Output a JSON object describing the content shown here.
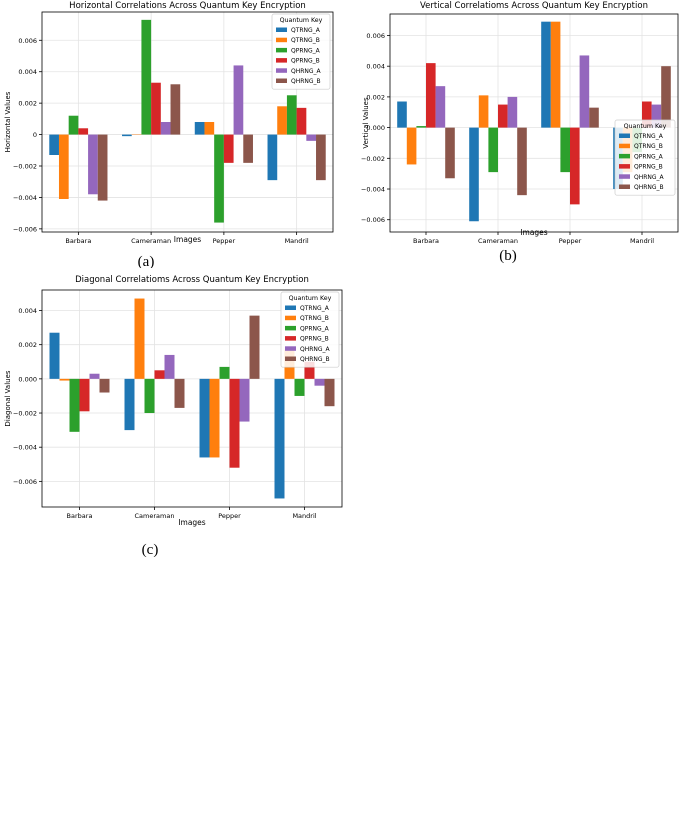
{
  "series_names": [
    "QTRNG_A",
    "QTRNG_B",
    "QPRNG_A",
    "QPRNG_B",
    "QHRNG_A",
    "QHRNG_B"
  ],
  "series_colors": [
    "#1f77b4",
    "#ff7f0e",
    "#2ca02c",
    "#d62728",
    "#9467bd",
    "#8c564b"
  ],
  "chart_data": [
    {
      "type": "bar",
      "title": "Horizontal Correlations Across Quantum Key Encryption",
      "xlabel": "Images",
      "ylabel": "Horizontal Values",
      "caption": "(a)",
      "legend_title": "Quantum Key",
      "legend_position": "top-right",
      "categories": [
        "Barbara",
        "Cameraman",
        "Pepper",
        "Mandril"
      ],
      "ylim": [
        -0.0062,
        0.0078
      ],
      "yticks": [
        -0.006,
        -0.004,
        -0.002,
        0,
        0.002,
        0.004,
        0.006
      ],
      "ytick_labels": [
        "−0.006",
        "−0.004",
        "−0.002",
        "0",
        "0.002",
        "0.004",
        "0.006"
      ],
      "series": [
        {
          "name": "QTRNG_A",
          "values": [
            -0.0013,
            -0.0001,
            0.0008,
            -0.0029
          ]
        },
        {
          "name": "QTRNG_B",
          "values": [
            -0.0041,
            0.0,
            0.0008,
            0.0018
          ]
        },
        {
          "name": "QPRNG_A",
          "values": [
            0.0012,
            0.0073,
            -0.0056,
            0.0025
          ]
        },
        {
          "name": "QPRNG_B",
          "values": [
            0.0004,
            0.0033,
            -0.0018,
            0.0017
          ]
        },
        {
          "name": "QHRNG_A",
          "values": [
            -0.0038,
            0.0008,
            0.0044,
            -0.0004
          ]
        },
        {
          "name": "QHRNG_B",
          "values": [
            -0.0042,
            0.0032,
            -0.0018,
            -0.0029
          ]
        }
      ]
    },
    {
      "type": "bar",
      "title": "Vertical Correlatioms Across Quantum Key Encryption",
      "xlabel": "Images",
      "ylabel": "Vertical Values",
      "caption": "(b)",
      "legend_title": "Quantum Key",
      "legend_position": "bottom-right",
      "categories": [
        "Barbara",
        "Cameraman",
        "Pepper",
        "Mandril"
      ],
      "ylim": [
        -0.0068,
        0.0074
      ],
      "yticks": [
        -0.006,
        -0.004,
        -0.002,
        0,
        0.002,
        0.004,
        0.006
      ],
      "ytick_labels": [
        "−0.006",
        "−0.004",
        "−0.002",
        "0.000",
        "0.002",
        "0.004",
        "0.006"
      ],
      "series": [
        {
          "name": "QTRNG_A",
          "values": [
            0.0017,
            -0.0061,
            0.0069,
            -0.004
          ]
        },
        {
          "name": "QTRNG_B",
          "values": [
            -0.0024,
            0.0021,
            0.0069,
            -0.0029
          ]
        },
        {
          "name": "QPRNG_A",
          "values": [
            0.0001,
            -0.0029,
            -0.0029,
            -0.0016
          ]
        },
        {
          "name": "QPRNG_B",
          "values": [
            0.0042,
            0.0015,
            -0.005,
            0.0017
          ]
        },
        {
          "name": "QHRNG_A",
          "values": [
            0.0027,
            0.002,
            0.0047,
            0.0015
          ]
        },
        {
          "name": "QHRNG_B",
          "values": [
            -0.0033,
            -0.0044,
            0.0013,
            0.004
          ]
        }
      ]
    },
    {
      "type": "bar",
      "title": "Diagonal Correlatioms Across Quantum Key Encryption",
      "xlabel": "Images",
      "ylabel": "Diagonal Values",
      "caption": "(c)",
      "legend_title": "Quantum Key",
      "legend_position": "top-right",
      "categories": [
        "Barbara",
        "Cameraman",
        "Pepper",
        "Mandril"
      ],
      "ylim": [
        -0.0075,
        0.0052
      ],
      "yticks": [
        -0.006,
        -0.004,
        -0.002,
        0,
        0.002,
        0.004
      ],
      "ytick_labels": [
        "−0.006",
        "−0.004",
        "−0.002",
        "0.000",
        "0.002",
        "0.004"
      ],
      "series": [
        {
          "name": "QTRNG_A",
          "values": [
            0.0027,
            -0.003,
            -0.0046,
            -0.007
          ]
        },
        {
          "name": "QTRNG_B",
          "values": [
            -0.0001,
            0.0047,
            -0.0046,
            0.0017
          ]
        },
        {
          "name": "QPRNG_A",
          "values": [
            -0.0031,
            -0.002,
            0.0007,
            -0.001
          ]
        },
        {
          "name": "QPRNG_B",
          "values": [
            -0.0019,
            0.0005,
            -0.0052,
            0.001
          ]
        },
        {
          "name": "QHRNG_A",
          "values": [
            0.0003,
            0.0014,
            -0.0025,
            -0.0004
          ]
        },
        {
          "name": "QHRNG_B",
          "values": [
            -0.0008,
            -0.0017,
            0.0037,
            -0.0016
          ]
        }
      ]
    }
  ]
}
